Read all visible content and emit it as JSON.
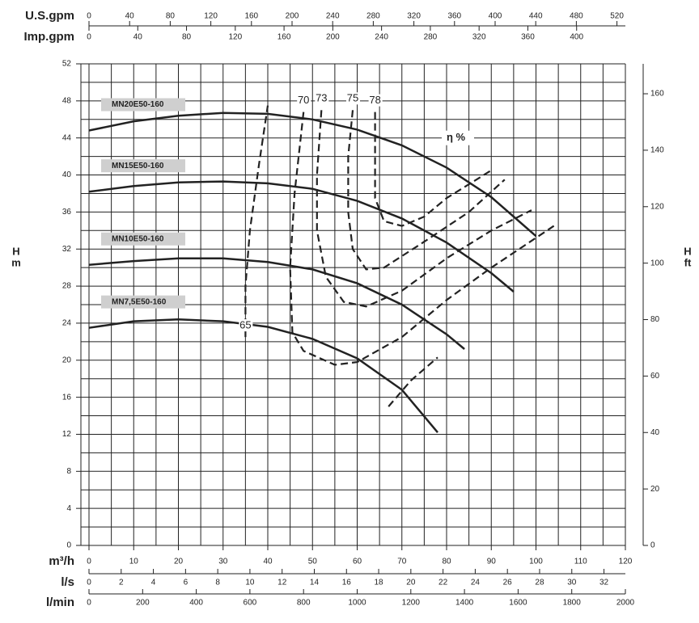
{
  "chart_data": {
    "type": "line",
    "xlabel": "m³/h",
    "xlim": [
      0,
      120
    ],
    "xticks": [
      0,
      10,
      20,
      30,
      40,
      50,
      60,
      70,
      80,
      90,
      100,
      110,
      120
    ],
    "xgrid": [
      0,
      5,
      10,
      15,
      20,
      25,
      30,
      35,
      40,
      45,
      50,
      55,
      60,
      65,
      70,
      75,
      80,
      85,
      90,
      95,
      100,
      105,
      110,
      115,
      120
    ],
    "ylabel": [
      "H",
      "m"
    ],
    "ylim": [
      0,
      52
    ],
    "yticks": [
      0,
      4,
      8,
      12,
      16,
      20,
      24,
      28,
      32,
      36,
      40,
      44,
      48,
      52
    ],
    "ygrid": [
      0,
      2,
      4,
      6,
      8,
      10,
      12,
      14,
      16,
      18,
      20,
      22,
      24,
      26,
      28,
      30,
      32,
      34,
      36,
      38,
      40,
      42,
      44,
      46,
      48,
      50,
      52
    ],
    "y2label": [
      "H",
      "ft"
    ],
    "y2lim": [
      0,
      170.6
    ],
    "y2ticks": [
      0,
      20,
      40,
      60,
      80,
      100,
      120,
      140,
      160
    ],
    "top_axes": [
      {
        "label": "U.S.gpm",
        "lim": [
          0,
          528.3
        ],
        "ticks": [
          0,
          40,
          80,
          120,
          160,
          200,
          240,
          280,
          320,
          360,
          400,
          440,
          480,
          520
        ]
      },
      {
        "label": "Imp.gpm",
        "lim": [
          0,
          440
        ],
        "ticks": [
          0,
          40,
          80,
          120,
          160,
          200,
          240,
          280,
          320,
          360,
          400
        ]
      }
    ],
    "bottom_axes": [
      {
        "label": "l/s",
        "lim": [
          0,
          33.33
        ],
        "ticks": [
          0,
          2,
          4,
          6,
          8,
          10,
          12,
          14,
          16,
          18,
          20,
          22,
          24,
          26,
          28,
          30,
          32
        ]
      },
      {
        "label": "l/min",
        "lim": [
          0,
          2000
        ],
        "ticks": [
          0,
          200,
          400,
          600,
          800,
          1000,
          1200,
          1400,
          1600,
          1800,
          2000
        ]
      }
    ],
    "color": "#222222",
    "series": [
      {
        "name": "MN20E50-160",
        "x": [
          0,
          10,
          20,
          30,
          40,
          50,
          60,
          70,
          80,
          90,
          100
        ],
        "values": [
          44.8,
          45.8,
          46.4,
          46.7,
          46.6,
          46.0,
          44.9,
          43.2,
          40.8,
          37.6,
          33.4
        ]
      },
      {
        "name": "MN15E50-160",
        "x": [
          0,
          10,
          20,
          30,
          40,
          50,
          60,
          70,
          80,
          90,
          95
        ],
        "values": [
          38.2,
          38.8,
          39.2,
          39.3,
          39.1,
          38.5,
          37.2,
          35.3,
          32.7,
          29.4,
          27.4
        ]
      },
      {
        "name": "MN10E50-160",
        "x": [
          0,
          10,
          20,
          30,
          40,
          50,
          60,
          70,
          80,
          84
        ],
        "values": [
          30.3,
          30.7,
          31.0,
          31.0,
          30.6,
          29.8,
          28.3,
          26.0,
          22.8,
          21.2
        ]
      },
      {
        "name": "MN7,5E50-160",
        "x": [
          0,
          10,
          20,
          30,
          40,
          50,
          60,
          70,
          78
        ],
        "values": [
          23.5,
          24.2,
          24.4,
          24.2,
          23.6,
          22.3,
          20.2,
          16.8,
          12.2
        ]
      }
    ],
    "efficiency_label": "η %",
    "efficiency": [
      {
        "name": "65",
        "x": [
          35,
          35,
          36,
          38,
          40,
          null,
          67,
          72,
          78
        ],
        "values": [
          22.5,
          28,
          34,
          41,
          47.5,
          null,
          15,
          17.8,
          20.3
        ]
      },
      {
        "name": "70",
        "x": [
          48,
          46,
          45,
          45.5,
          48,
          55,
          60,
          70,
          80,
          90,
          104
        ],
        "values": [
          46.8,
          38,
          30,
          23,
          21,
          19.5,
          19.8,
          22.5,
          26.5,
          30,
          34.5
        ]
      },
      {
        "name": "73",
        "x": [
          52,
          51,
          51,
          53,
          57,
          62,
          70,
          80,
          90,
          99
        ],
        "values": [
          47,
          40,
          34,
          29,
          26.3,
          25.8,
          27.5,
          31,
          34,
          36.2
        ]
      },
      {
        "name": "75",
        "x": [
          59,
          58,
          58,
          59,
          62,
          66,
          75,
          85,
          93
        ],
        "values": [
          47,
          42,
          36,
          32,
          29.8,
          30,
          32.8,
          36,
          39.5
        ]
      },
      {
        "name": "78",
        "x": [
          64,
          64,
          64,
          66,
          70,
          75,
          80,
          90
        ],
        "values": [
          46.8,
          42,
          37.5,
          35,
          34.5,
          35.5,
          37.5,
          40.5
        ]
      }
    ]
  }
}
